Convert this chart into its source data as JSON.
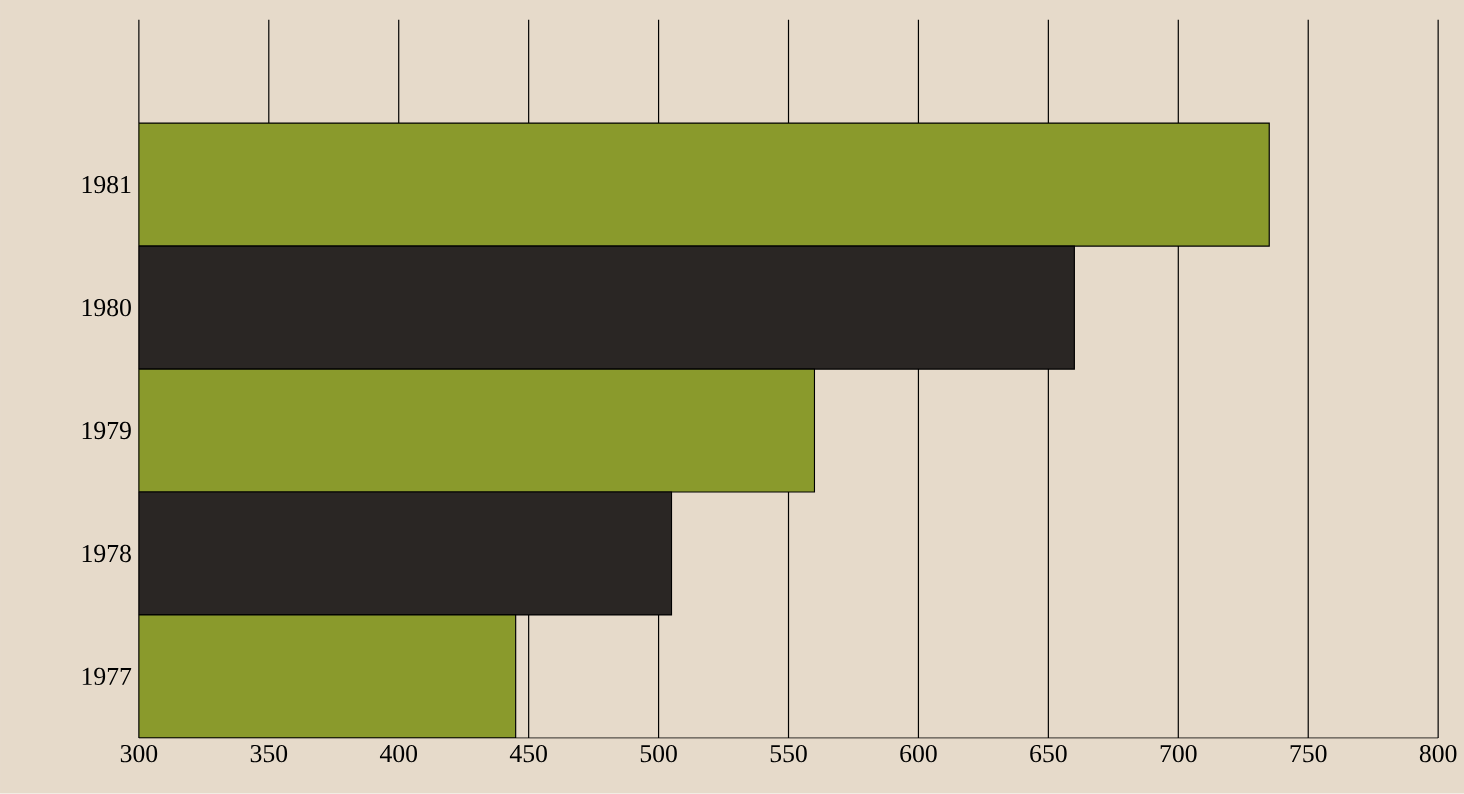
{
  "chart_data": {
    "type": "bar",
    "orientation": "horizontal",
    "categories": [
      "1981",
      "1980",
      "1979",
      "1978",
      "1977"
    ],
    "values": [
      735,
      660,
      560,
      505,
      445
    ],
    "colors": [
      "#8a9a2c",
      "#2a2624",
      "#8a9a2c",
      "#2a2624",
      "#8a9a2c"
    ],
    "xlim": [
      300,
      800
    ],
    "xticks": [
      300,
      350,
      400,
      450,
      500,
      550,
      600,
      650,
      700,
      750,
      800
    ],
    "grid": "x"
  }
}
